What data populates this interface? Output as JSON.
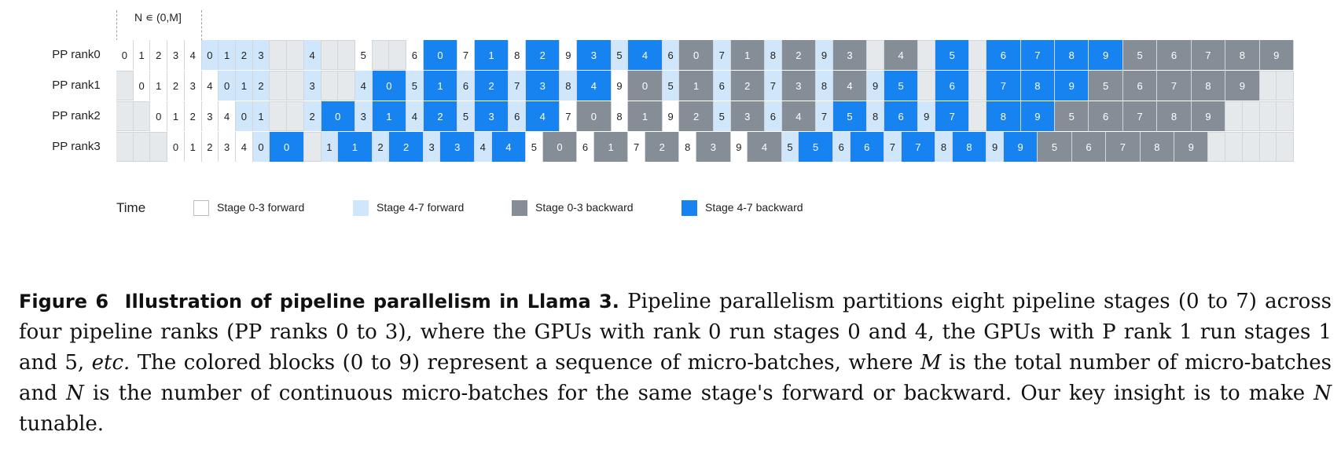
{
  "header_annotation": "N ∊ (0,M]",
  "rank_labels": [
    "PP rank0",
    "PP rank1",
    "PP rank2",
    "PP rank3"
  ],
  "schedule": [
    [
      [
        "0",
        "fw"
      ],
      [
        "1",
        "fw"
      ],
      [
        "2",
        "fw"
      ],
      [
        "3",
        "fw"
      ],
      [
        "4",
        "fw"
      ],
      [
        "0",
        "lf"
      ],
      [
        "1",
        "lf"
      ],
      [
        "2",
        "lf"
      ],
      [
        "3",
        "lf"
      ],
      [
        "",
        ""
      ],
      [
        "",
        ""
      ],
      [
        "4",
        "lf"
      ],
      [
        "",
        ""
      ],
      [
        "",
        ""
      ],
      [
        "5",
        "fw"
      ],
      [
        "",
        ""
      ],
      [
        "",
        ""
      ],
      [
        "6",
        "fw"
      ],
      [
        "0",
        "bb"
      ],
      [
        "7",
        "fw"
      ],
      [
        "1",
        "bb"
      ],
      [
        "8",
        "fw"
      ],
      [
        "2",
        "bb"
      ],
      [
        "9",
        "fw"
      ],
      [
        "3",
        "bb"
      ],
      [
        "5",
        "lf"
      ],
      [
        "4",
        "bb"
      ],
      [
        "6",
        "lf"
      ],
      [
        "0",
        "gb"
      ],
      [
        "7",
        "lf"
      ],
      [
        "1",
        "gb"
      ],
      [
        "8",
        "lf"
      ],
      [
        "2",
        "gb"
      ],
      [
        "9",
        "lf"
      ],
      [
        "3",
        "gb"
      ],
      [
        "",
        ""
      ],
      [
        "4",
        "gb"
      ],
      [
        "",
        ""
      ],
      [
        "5",
        "bb"
      ],
      [
        "",
        ""
      ],
      [
        "6",
        "bb"
      ],
      [
        "7",
        "bb"
      ],
      [
        "8",
        "bb"
      ],
      [
        "9",
        "bb"
      ],
      [
        "5",
        "gb"
      ],
      [
        "6",
        "gb"
      ],
      [
        "7",
        "gb"
      ],
      [
        "8",
        "gb"
      ],
      [
        "9",
        "gb"
      ]
    ],
    [
      [
        "",
        ""
      ],
      [
        "0",
        "fw"
      ],
      [
        "1",
        "fw"
      ],
      [
        "2",
        "fw"
      ],
      [
        "3",
        "fw"
      ],
      [
        "4",
        "fw"
      ],
      [
        "0",
        "lf"
      ],
      [
        "1",
        "lf"
      ],
      [
        "2",
        "lf"
      ],
      [
        "",
        ""
      ],
      [
        "",
        ""
      ],
      [
        "3",
        "lf"
      ],
      [
        "",
        ""
      ],
      [
        "",
        ""
      ],
      [
        "4",
        "lf"
      ],
      [
        "0",
        "bb"
      ],
      [
        "5",
        "lf"
      ],
      [
        "1",
        "bb"
      ],
      [
        "6",
        "lf"
      ],
      [
        "2",
        "bb"
      ],
      [
        "7",
        "lf"
      ],
      [
        "3",
        "bb"
      ],
      [
        "8",
        "lf"
      ],
      [
        "4",
        "bb"
      ],
      [
        "9",
        "fw"
      ],
      [
        "0",
        "gb"
      ],
      [
        "5",
        "lf"
      ],
      [
        "1",
        "gb"
      ],
      [
        "6",
        "lf"
      ],
      [
        "2",
        "gb"
      ],
      [
        "7",
        "lf"
      ],
      [
        "3",
        "gb"
      ],
      [
        "8",
        "lf"
      ],
      [
        "4",
        "gb"
      ],
      [
        "9",
        "lf"
      ],
      [
        "5",
        "bb"
      ],
      [
        "",
        ""
      ],
      [
        "6",
        "bb"
      ],
      [
        "",
        ""
      ],
      [
        "7",
        "bb"
      ],
      [
        "8",
        "bb"
      ],
      [
        "9",
        "bb"
      ],
      [
        "5",
        "gb"
      ],
      [
        "6",
        "gb"
      ],
      [
        "7",
        "gb"
      ],
      [
        "8",
        "gb"
      ],
      [
        "9",
        "gb"
      ],
      [
        "",
        ""
      ],
      [
        "",
        ""
      ]
    ],
    [
      [
        "",
        ""
      ],
      [
        "",
        ""
      ],
      [
        "0",
        "fw"
      ],
      [
        "1",
        "fw"
      ],
      [
        "2",
        "fw"
      ],
      [
        "3",
        "fw"
      ],
      [
        "4",
        "fw"
      ],
      [
        "0",
        "lf"
      ],
      [
        "1",
        "lf"
      ],
      [
        "",
        ""
      ],
      [
        "",
        ""
      ],
      [
        "2",
        "lf"
      ],
      [
        "0",
        "bb"
      ],
      [
        "3",
        "lf"
      ],
      [
        "1",
        "bb"
      ],
      [
        "4",
        "lf"
      ],
      [
        "2",
        "bb"
      ],
      [
        "5",
        "lf"
      ],
      [
        "3",
        "bb"
      ],
      [
        "6",
        "lf"
      ],
      [
        "4",
        "bb"
      ],
      [
        "7",
        "fw"
      ],
      [
        "0",
        "gb"
      ],
      [
        "8",
        "fw"
      ],
      [
        "1",
        "gb"
      ],
      [
        "9",
        "fw"
      ],
      [
        "2",
        "gb"
      ],
      [
        "5",
        "lf"
      ],
      [
        "3",
        "gb"
      ],
      [
        "6",
        "lf"
      ],
      [
        "4",
        "gb"
      ],
      [
        "7",
        "lf"
      ],
      [
        "5",
        "bb"
      ],
      [
        "8",
        "lf"
      ],
      [
        "6",
        "bb"
      ],
      [
        "9",
        "lf"
      ],
      [
        "7",
        "bb"
      ],
      [
        "",
        ""
      ],
      [
        "8",
        "bb"
      ],
      [
        "9",
        "bb"
      ],
      [
        "5",
        "gb"
      ],
      [
        "6",
        "gb"
      ],
      [
        "7",
        "gb"
      ],
      [
        "8",
        "gb"
      ],
      [
        "9",
        "gb"
      ],
      [
        "",
        ""
      ],
      [
        "",
        ""
      ],
      [
        "",
        ""
      ],
      [
        "",
        ""
      ]
    ],
    [
      [
        "",
        ""
      ],
      [
        "",
        ""
      ],
      [
        "",
        ""
      ],
      [
        "0",
        "fw"
      ],
      [
        "1",
        "fw"
      ],
      [
        "2",
        "fw"
      ],
      [
        "3",
        "fw"
      ],
      [
        "4",
        "fw"
      ],
      [
        "0",
        "lf"
      ],
      [
        "0",
        "bb"
      ],
      [
        "",
        ""
      ],
      [
        "1",
        "lf"
      ],
      [
        "1",
        "bb"
      ],
      [
        "2",
        "lf"
      ],
      [
        "2",
        "bb"
      ],
      [
        "3",
        "lf"
      ],
      [
        "3",
        "bb"
      ],
      [
        "4",
        "lf"
      ],
      [
        "4",
        "bb"
      ],
      [
        "5",
        "fw"
      ],
      [
        "0",
        "gb"
      ],
      [
        "6",
        "fw"
      ],
      [
        "1",
        "gb"
      ],
      [
        "7",
        "fw"
      ],
      [
        "2",
        "gb"
      ],
      [
        "8",
        "fw"
      ],
      [
        "3",
        "gb"
      ],
      [
        "9",
        "fw"
      ],
      [
        "4",
        "gb"
      ],
      [
        "5",
        "lf"
      ],
      [
        "5",
        "bb"
      ],
      [
        "6",
        "lf"
      ],
      [
        "6",
        "bb"
      ],
      [
        "7",
        "lf"
      ],
      [
        "7",
        "bb"
      ],
      [
        "8",
        "lf"
      ],
      [
        "8",
        "bb"
      ],
      [
        "9",
        "lf"
      ],
      [
        "9",
        "bb"
      ],
      [
        "5",
        "gb"
      ],
      [
        "6",
        "gb"
      ],
      [
        "7",
        "gb"
      ],
      [
        "8",
        "gb"
      ],
      [
        "9",
        "gb"
      ],
      [
        "",
        ""
      ],
      [
        "",
        ""
      ],
      [
        "",
        ""
      ],
      [
        "",
        ""
      ],
      [
        "",
        ""
      ]
    ]
  ],
  "time_label": "Time",
  "legend": [
    {
      "key": "fw",
      "label": "Stage 0-3 forward",
      "color": "#ffffff"
    },
    {
      "key": "lf",
      "label": "Stage 4-7 forward",
      "color": "#cfe6fb"
    },
    {
      "key": "gb",
      "label": "Stage 0-3 backward",
      "color": "#858e97"
    },
    {
      "key": "bb",
      "label": "Stage 4-7 backward",
      "color": "#1683f0"
    }
  ],
  "caption": {
    "figure_label": "Figure 6",
    "figure_title": "Illustration of pipeline parallelism in Llama 3.",
    "part1": "Pipeline parallelism partitions eight pipeline stages (0 to 7) across four pipeline ranks (PP ranks 0 to 3), where the GPUs with rank 0 run stages 0 and 4, the GPUs with P rank 1 run stages 1 and 5,",
    "etc": "etc.",
    "part2": "The colored blocks (0 to 9) represent a sequence of micro-batches, where",
    "M": "M",
    "part3": "is the total number of micro-batches and",
    "N": "N",
    "part4": "is the number of continuous micro-batches for the same stage's forward or backward. Our key insight is to make",
    "N2": "N",
    "part5": "tunable."
  }
}
